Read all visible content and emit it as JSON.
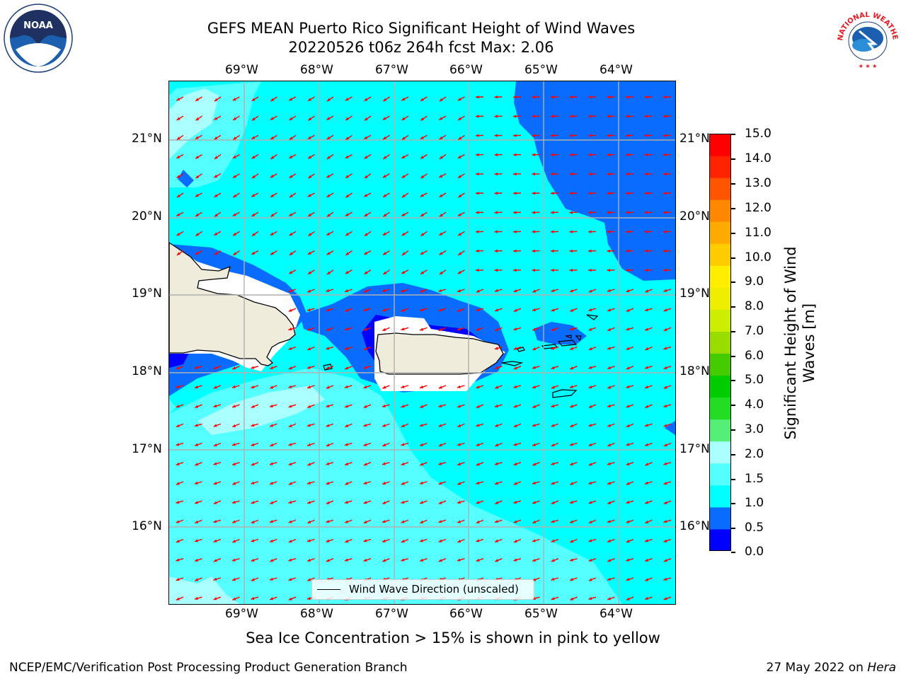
{
  "title": {
    "line1": "GEFS MEAN Puerto Rico Significant Height of Wind Waves",
    "line2": "20220526 t06z 264h fcst   Max: 2.06"
  },
  "map": {
    "lon_labels": [
      "69°W",
      "68°W",
      "67°W",
      "66°W",
      "65°W",
      "64°W"
    ],
    "lat_labels": [
      "21°N",
      "20°N",
      "19°N",
      "18°N",
      "17°N",
      "16°N"
    ],
    "legend_label": "Wind Wave Direction (unscaled)",
    "arrow_color": "#ff0000",
    "land_color": "#efecdc"
  },
  "colorbar": {
    "label": "Significant Height of Wind Waves [m]",
    "ticks": [
      "15.0",
      "14.0",
      "13.0",
      "12.0",
      "11.0",
      "10.0",
      "9.0",
      "8.0",
      "7.0",
      "6.0",
      "5.0",
      "4.0",
      "3.0",
      "2.0",
      "1.5",
      "1.0",
      "0.5",
      "0.0"
    ],
    "colors_bottom_to_top": [
      "#0000ff",
      "#0a6cff",
      "#00ffff",
      "#55ffff",
      "#aaffff",
      "#55ee77",
      "#22dd22",
      "#00cc00",
      "#44cc00",
      "#99dd00",
      "#ccee00",
      "#eeee00",
      "#ffee00",
      "#ffcc00",
      "#ffaa00",
      "#ff8800",
      "#ff5500",
      "#ff2200",
      "#ff0000"
    ]
  },
  "notes": {
    "sea_ice": "Sea Ice Concentration > 15% is shown in pink to yellow"
  },
  "footer": {
    "left": "NCEP/EMC/Verification Post Processing Product Generation Branch",
    "right_prefix": "27 May 2022 on ",
    "right_italic": "Hera"
  },
  "logos": {
    "noaa_text": "NOAA",
    "nws_text": "NATIONAL WEATHER SERVICE"
  }
}
